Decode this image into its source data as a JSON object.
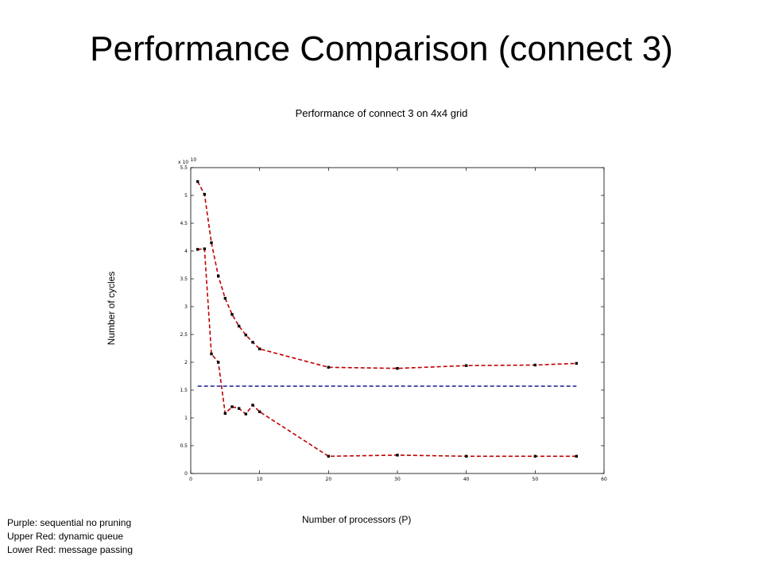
{
  "slide": {
    "title": "Performance Comparison (connect 3)"
  },
  "legend_notes": [
    "Purple: sequential no pruning",
    "Upper Red:  dynamic queue",
    "Lower Red: message passing"
  ],
  "colors": {
    "red_series": "#c00000",
    "purple_series": "#2b2b9c",
    "marker": "#000000",
    "axis": "#000000"
  },
  "chart_data": {
    "type": "line",
    "title": "Performance of connect 3 on 4x4 grid",
    "xlabel": "Number of processors (P)",
    "ylabel": "Number of cycles",
    "y_exponent_label": "x 10",
    "y_exponent": "10",
    "xlim": [
      0,
      60
    ],
    "ylim": [
      0,
      5.5
    ],
    "x_ticks": [
      0,
      10,
      20,
      30,
      40,
      50,
      60
    ],
    "x_tick_labels": [
      "0",
      "10",
      "20",
      "30",
      "40",
      "50",
      "60"
    ],
    "y_ticks": [
      0,
      0.5,
      1,
      1.5,
      2,
      2.5,
      3,
      3.5,
      4,
      4.5,
      5,
      5.5
    ],
    "y_tick_labels": [
      "0",
      "0.5",
      "1",
      "1.5",
      "2",
      "2.5",
      "3",
      "3.5",
      "4",
      "4.5",
      "5",
      "5.5"
    ],
    "grid": false,
    "series": [
      {
        "color": "#c00000",
        "dashed": true,
        "markers": true,
        "x": [
          1,
          2,
          3,
          4,
          5,
          6,
          7,
          8,
          9,
          10,
          20,
          30,
          40,
          50,
          56
        ],
        "y": [
          5.25,
          5.02,
          4.15,
          3.55,
          3.15,
          2.86,
          2.65,
          2.49,
          2.36,
          2.24,
          1.91,
          1.89,
          1.94,
          1.95,
          1.98
        ]
      },
      {
        "color": "#c00000",
        "dashed": true,
        "markers": true,
        "x": [
          1,
          2,
          3,
          4,
          5,
          6,
          7,
          8,
          9,
          10,
          20,
          30,
          40,
          50,
          56
        ],
        "y": [
          4.03,
          4.04,
          2.15,
          2.0,
          1.08,
          1.2,
          1.17,
          1.07,
          1.23,
          1.11,
          0.31,
          0.33,
          0.31,
          0.31,
          0.31
        ]
      },
      {
        "color": "#2b2b9c",
        "dashed": true,
        "markers": false,
        "x": [
          1,
          56
        ],
        "y": [
          1.57,
          1.57
        ]
      }
    ]
  }
}
